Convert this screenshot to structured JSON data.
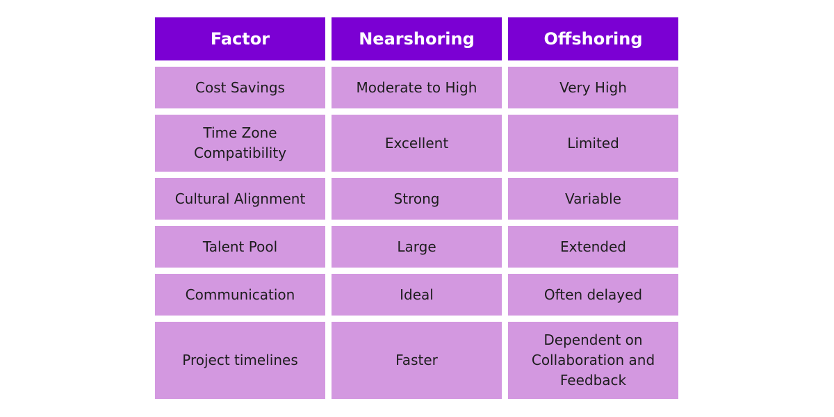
{
  "chart_data": {
    "type": "table",
    "columns": [
      "Factor",
      "Nearshoring",
      "Offshoring"
    ],
    "rows": [
      [
        "Cost Savings",
        "Moderate to High",
        "Very High"
      ],
      [
        "Time Zone Compatibility",
        "Excellent",
        "Limited"
      ],
      [
        "Cultural Alignment",
        "Strong",
        "Variable"
      ],
      [
        "Talent Pool",
        "Large",
        "Extended"
      ],
      [
        "Communication",
        "Ideal",
        "Often delayed"
      ],
      [
        "Project timelines",
        "Faster",
        "Dependent on Collaboration and Feedback"
      ]
    ]
  },
  "colors": {
    "header_bg": "#7b00d3",
    "header_text": "#ffffff",
    "cell_bg": "#d398e0",
    "cell_text": "#1d1d1d"
  }
}
